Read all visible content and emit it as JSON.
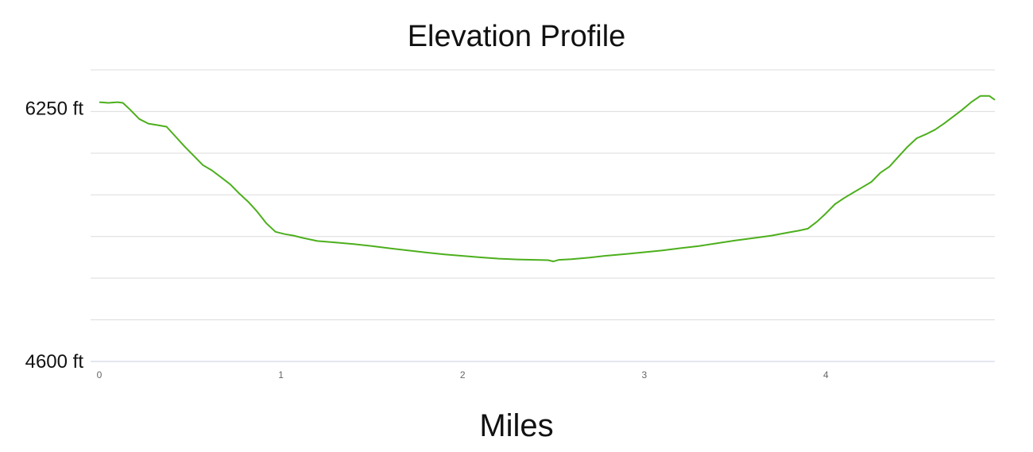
{
  "chart_data": {
    "type": "line",
    "title": "Elevation Profile",
    "xlabel": "Miles",
    "ylabel": "",
    "xlim": [
      0,
      4.93
    ],
    "ylim": [
      4600,
      6500
    ],
    "x_ticks": [
      0,
      1,
      2,
      3,
      4
    ],
    "x_tick_labels": [
      "0",
      "1",
      "2",
      "3",
      "4"
    ],
    "y_ticks": [
      4600,
      6250
    ],
    "y_tick_labels": [
      "4600 ft",
      "6250 ft"
    ],
    "grid": true,
    "legend": "none",
    "series": [
      {
        "color": "#4caf1c",
        "x": [
          0,
          0.05,
          0.1,
          0.13,
          0.17,
          0.22,
          0.27,
          0.32,
          0.37,
          0.42,
          0.47,
          0.52,
          0.57,
          0.62,
          0.67,
          0.72,
          0.77,
          0.82,
          0.87,
          0.92,
          0.97,
          1.02,
          1.07,
          1.12,
          1.2,
          1.3,
          1.4,
          1.5,
          1.6,
          1.7,
          1.8,
          1.9,
          2.0,
          2.1,
          2.2,
          2.3,
          2.4,
          2.47,
          2.5,
          2.53,
          2.6,
          2.7,
          2.8,
          2.9,
          3.0,
          3.1,
          3.2,
          3.3,
          3.4,
          3.5,
          3.6,
          3.7,
          3.8,
          3.85,
          3.9,
          3.95,
          4.0,
          4.05,
          4.1,
          4.15,
          4.2,
          4.25,
          4.3,
          4.35,
          4.4,
          4.45,
          4.5,
          4.55,
          4.6,
          4.65,
          4.7,
          4.75,
          4.8,
          4.85,
          4.9,
          4.93
        ],
        "y": [
          6290,
          6285,
          6290,
          6285,
          6240,
          6180,
          6150,
          6140,
          6130,
          6065,
          6000,
          5940,
          5880,
          5845,
          5800,
          5755,
          5695,
          5640,
          5575,
          5500,
          5445,
          5430,
          5420,
          5405,
          5385,
          5375,
          5365,
          5352,
          5337,
          5323,
          5310,
          5298,
          5288,
          5278,
          5270,
          5265,
          5262,
          5260,
          5252,
          5262,
          5267,
          5277,
          5290,
          5300,
          5312,
          5324,
          5338,
          5352,
          5370,
          5388,
          5404,
          5420,
          5442,
          5452,
          5465,
          5510,
          5565,
          5625,
          5665,
          5700,
          5735,
          5770,
          5830,
          5870,
          5935,
          6000,
          6055,
          6080,
          6110,
          6150,
          6195,
          6240,
          6290,
          6330,
          6330,
          6305
        ]
      }
    ]
  }
}
